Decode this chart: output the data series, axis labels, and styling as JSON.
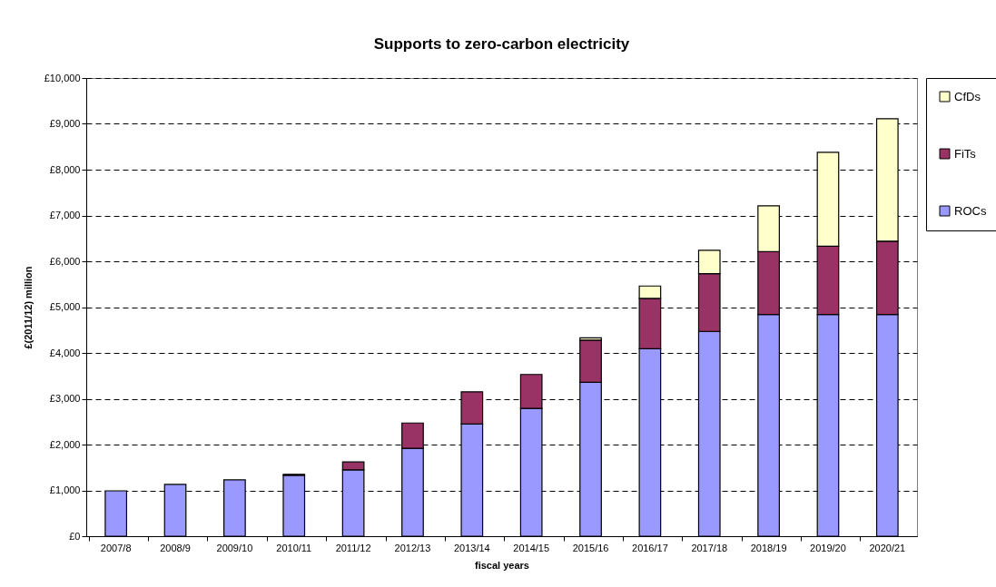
{
  "chart_data": {
    "type": "bar",
    "title": "Supports to zero-carbon electricity",
    "xlabel": "fiscal years",
    "ylabel": "£(2011/12) million",
    "categories": [
      "2007/8",
      "2008/9",
      "2009/10",
      "2010/11",
      "2011/12",
      "2012/13",
      "2013/14",
      "2014/15",
      "2015/16",
      "2016/17",
      "2017/18",
      "2018/19",
      "2019/20",
      "2020/21"
    ],
    "stacked": true,
    "series": [
      {
        "name": "ROCs",
        "color": "#9999ff",
        "values": [
          990,
          1130,
          1230,
          1330,
          1450,
          1920,
          2450,
          2790,
          3360,
          4090,
          4470,
          4840,
          4840,
          4840
        ]
      },
      {
        "name": "FiTs",
        "color": "#993366",
        "values": [
          null,
          null,
          null,
          20,
          170,
          550,
          700,
          740,
          920,
          1100,
          1260,
          1370,
          1490,
          1600
        ]
      },
      {
        "name": "CfDs",
        "color": "#ffffcc",
        "values": [
          null,
          null,
          null,
          null,
          null,
          null,
          null,
          null,
          50,
          270,
          510,
          1000,
          2050,
          2670
        ]
      }
    ],
    "ylim": [
      0,
      10000
    ],
    "yticks": [
      {
        "value": 0,
        "label": "£0"
      },
      {
        "value": 1000,
        "label": "£1,000"
      },
      {
        "value": 2000,
        "label": "£2,000"
      },
      {
        "value": 3000,
        "label": "£3,000"
      },
      {
        "value": 4000,
        "label": "£4,000"
      },
      {
        "value": 5000,
        "label": "£5,000"
      },
      {
        "value": 6000,
        "label": "£6,000"
      },
      {
        "value": 7000,
        "label": "£7,000"
      },
      {
        "value": 8000,
        "label": "£8,000"
      },
      {
        "value": 9000,
        "label": "£9,000"
      },
      {
        "value": 10000,
        "label": "£10,000"
      }
    ],
    "grid": "y",
    "line_style": "dashed",
    "legend": "right"
  }
}
